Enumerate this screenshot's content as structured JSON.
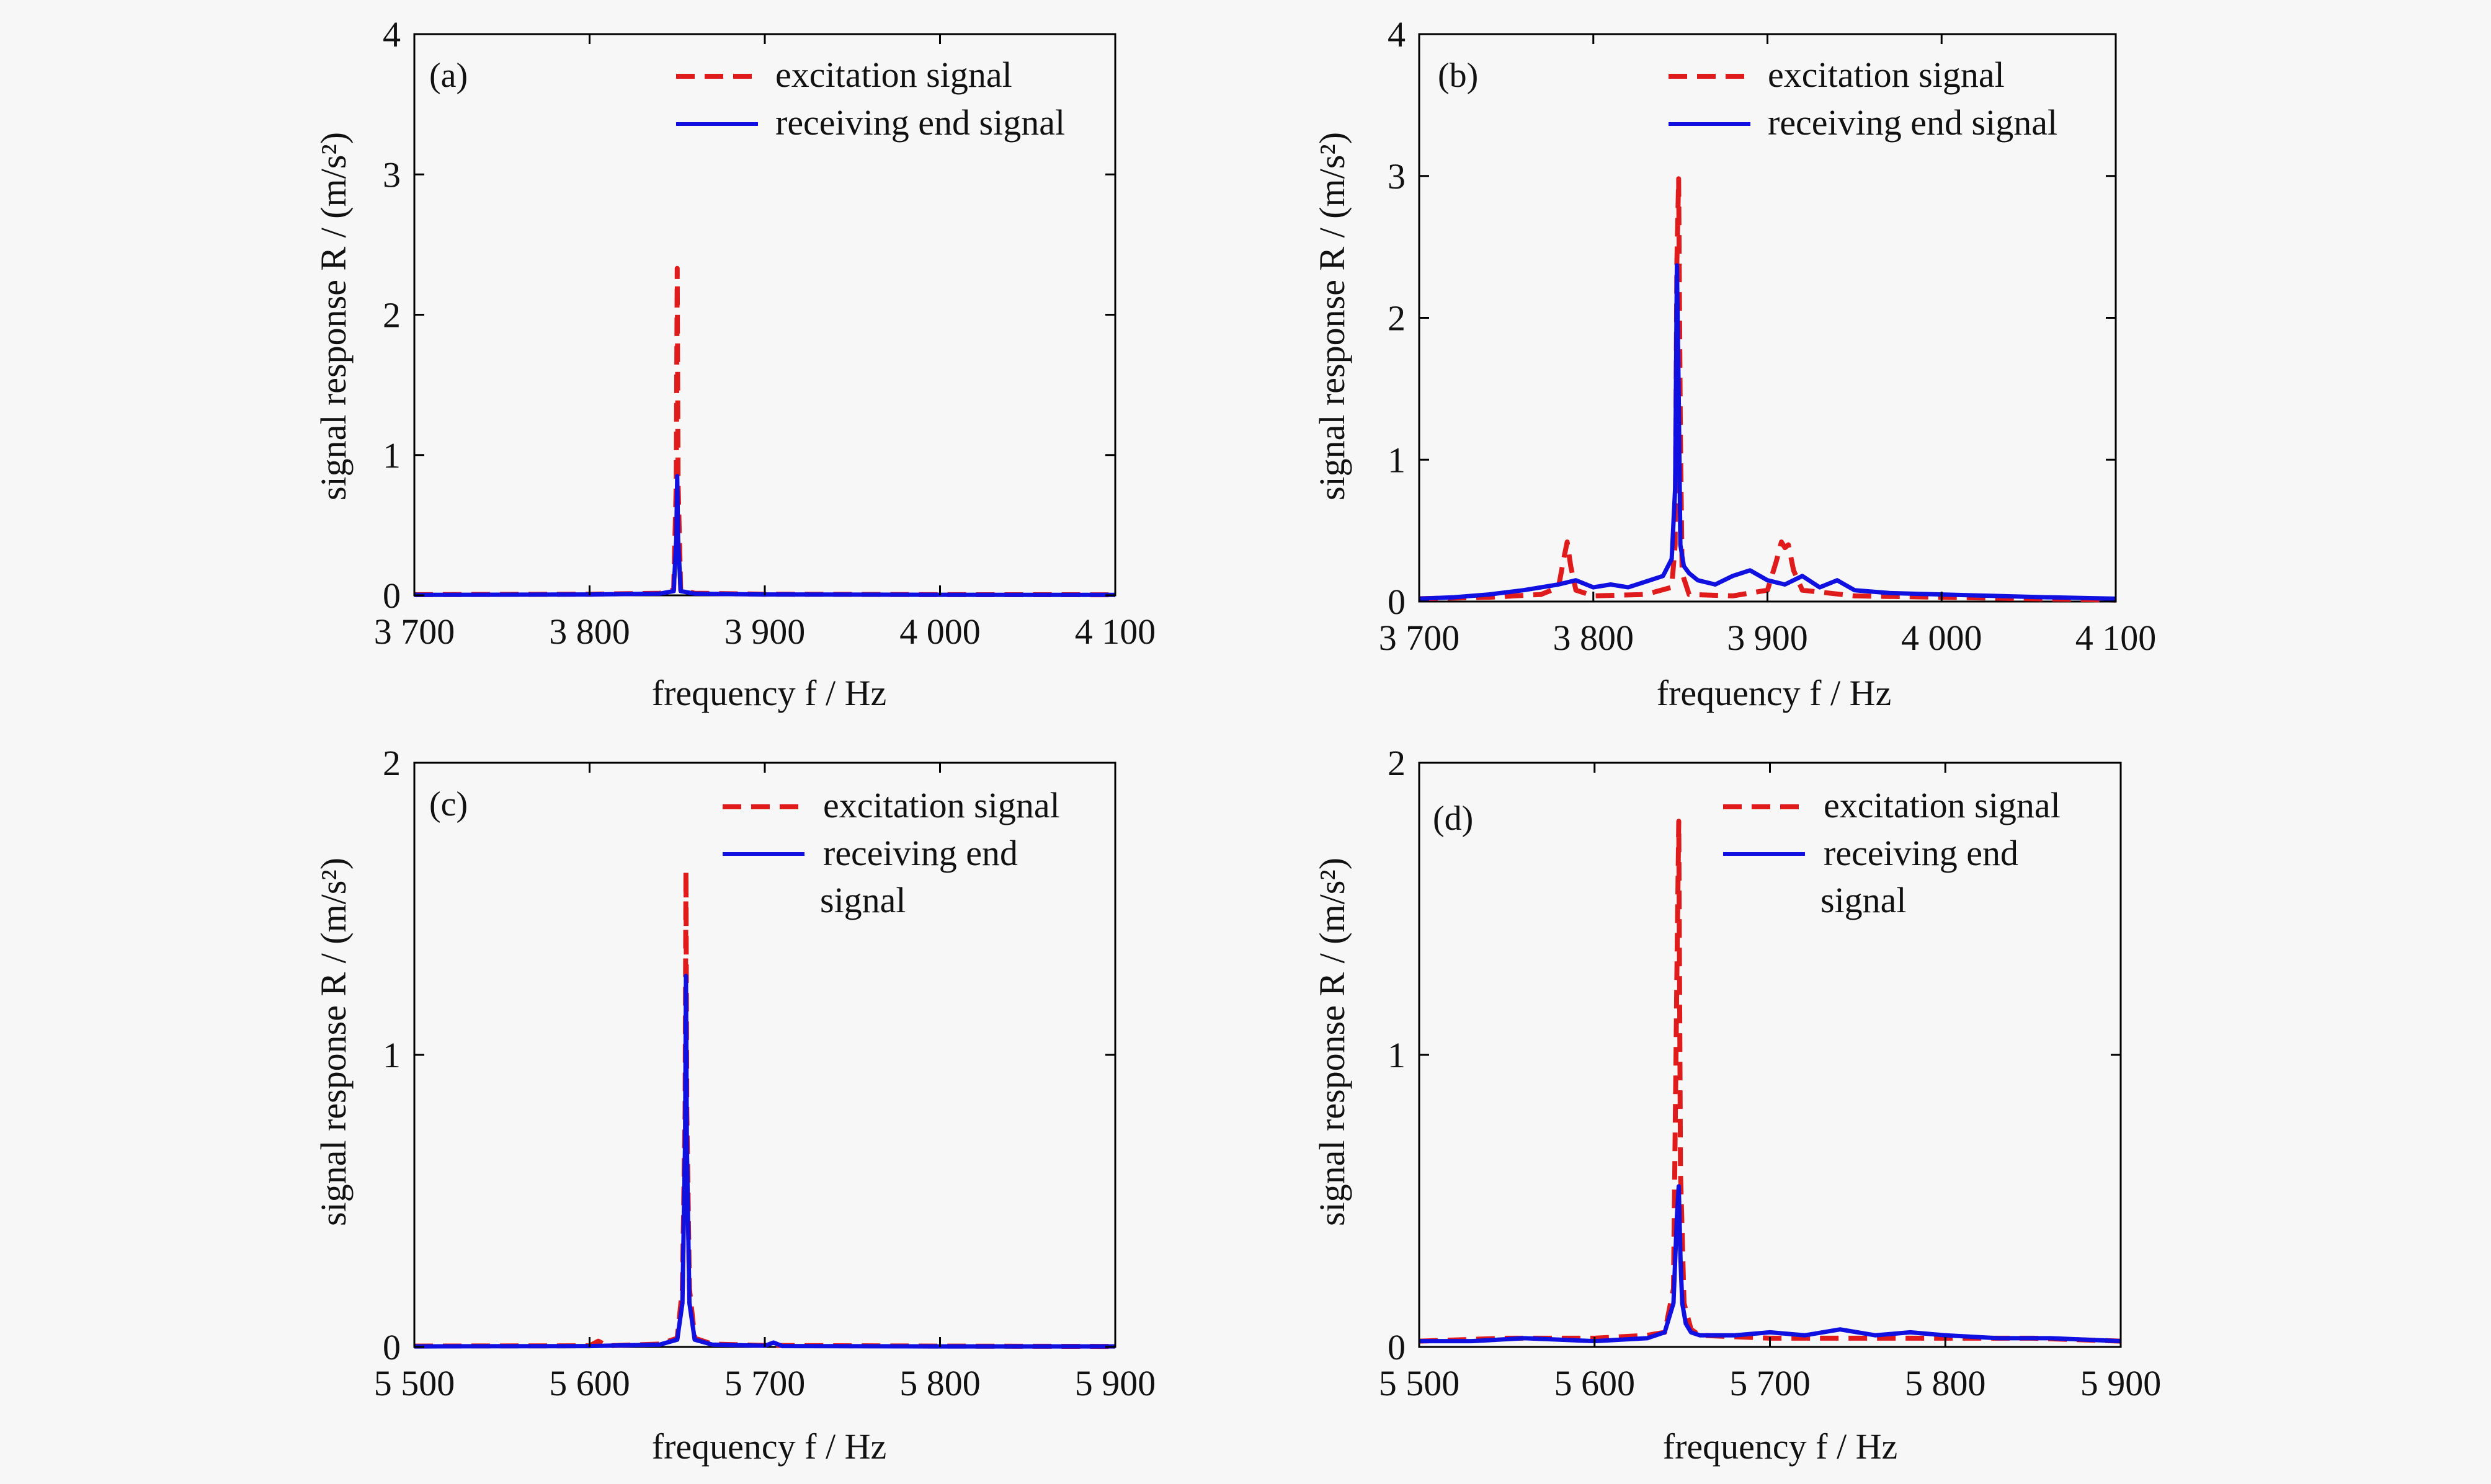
{
  "colors": {
    "background": "#f7f7f7",
    "excitation": "#e01b1b",
    "receiving": "#1010e0",
    "axis": "#000000"
  },
  "chart_data": [
    {
      "type": "line",
      "panel_label": "(a)",
      "xlabel": "frequency f / Hz",
      "ylabel": "signal response R / (m/s²)",
      "xlim": [
        3700,
        4100
      ],
      "ylim": [
        0,
        4
      ],
      "x_ticks": [
        3700,
        3800,
        3900,
        4000,
        4100
      ],
      "x_tick_labels": [
        "3 700",
        "3 800",
        "3 900",
        "4 000",
        "4 100"
      ],
      "y_ticks": [
        0,
        1,
        2,
        3,
        4
      ],
      "y_tick_labels": [
        "0",
        "1",
        "2",
        "3",
        "4"
      ],
      "legend": [
        "excitation signal",
        "receiving end signal"
      ],
      "legend_position": "top-right",
      "grid": false,
      "series": [
        {
          "name": "excitation signal",
          "style": "dashed",
          "x": [
            3700,
            3800,
            3840,
            3848,
            3849.5,
            3850,
            3850.5,
            3852,
            3860,
            3900,
            4000,
            4100
          ],
          "y": [
            0.005,
            0.008,
            0.015,
            0.04,
            0.8,
            2.33,
            0.8,
            0.04,
            0.015,
            0.008,
            0.005,
            0.004
          ]
        },
        {
          "name": "receiving end signal",
          "style": "solid",
          "x": [
            3700,
            3800,
            3840,
            3848,
            3849.5,
            3850,
            3850.5,
            3852,
            3860,
            3900,
            4000,
            4100
          ],
          "y": [
            0.003,
            0.006,
            0.012,
            0.03,
            0.4,
            0.85,
            0.4,
            0.03,
            0.012,
            0.006,
            0.004,
            0.003
          ]
        }
      ]
    },
    {
      "type": "line",
      "panel_label": "(b)",
      "xlabel": "frequency f / Hz",
      "ylabel": "signal response R / (m/s²)",
      "xlim": [
        3700,
        4100
      ],
      "ylim": [
        0,
        4
      ],
      "x_ticks": [
        3700,
        3800,
        3900,
        4000,
        4100
      ],
      "x_tick_labels": [
        "3 700",
        "3 800",
        "3 900",
        "4 000",
        "4 100"
      ],
      "y_ticks": [
        0,
        1,
        2,
        3,
        4
      ],
      "y_tick_labels": [
        "0",
        "1",
        "2",
        "3",
        "4"
      ],
      "legend": [
        "excitation signal",
        "receiving end signal"
      ],
      "legend_position": "top-right",
      "grid": false,
      "series": [
        {
          "name": "excitation signal",
          "style": "dashed",
          "x": [
            3700,
            3740,
            3770,
            3780,
            3783,
            3785,
            3787,
            3790,
            3800,
            3830,
            3845,
            3847,
            3848,
            3849,
            3850,
            3851,
            3855,
            3880,
            3900,
            3905,
            3908,
            3910,
            3912,
            3915,
            3920,
            3950,
            4000,
            4050,
            4100
          ],
          "y": [
            0.02,
            0.03,
            0.05,
            0.1,
            0.3,
            0.42,
            0.25,
            0.08,
            0.04,
            0.05,
            0.1,
            0.4,
            2.4,
            2.98,
            1.2,
            0.2,
            0.05,
            0.04,
            0.08,
            0.28,
            0.42,
            0.38,
            0.4,
            0.22,
            0.08,
            0.04,
            0.03,
            0.02,
            0.01
          ]
        },
        {
          "name": "receiving end signal",
          "style": "solid",
          "x": [
            3700,
            3720,
            3740,
            3760,
            3780,
            3790,
            3800,
            3810,
            3820,
            3830,
            3840,
            3845,
            3847,
            3848,
            3849,
            3850,
            3852,
            3855,
            3860,
            3870,
            3880,
            3890,
            3900,
            3910,
            3920,
            3930,
            3940,
            3950,
            3970,
            4000,
            4030,
            4060,
            4100
          ],
          "y": [
            0.02,
            0.03,
            0.05,
            0.08,
            0.12,
            0.15,
            0.1,
            0.12,
            0.1,
            0.14,
            0.18,
            0.3,
            0.8,
            2.37,
            1.5,
            0.4,
            0.25,
            0.2,
            0.15,
            0.12,
            0.18,
            0.22,
            0.15,
            0.12,
            0.18,
            0.1,
            0.15,
            0.08,
            0.06,
            0.05,
            0.04,
            0.03,
            0.02
          ]
        }
      ]
    },
    {
      "type": "line",
      "panel_label": "(c)",
      "xlabel": "frequency f / Hz",
      "ylabel": "signal response R / (m/s²)",
      "xlim": [
        5500,
        5900
      ],
      "ylim": [
        0,
        2
      ],
      "x_ticks": [
        5500,
        5600,
        5700,
        5800,
        5900
      ],
      "x_tick_labels": [
        "5 500",
        "5 600",
        "5 700",
        "5 800",
        "5 900"
      ],
      "y_ticks": [
        0,
        1,
        2
      ],
      "y_tick_labels": [
        "0",
        "1",
        "2"
      ],
      "legend": [
        "excitation signal",
        "receiving end\nsignal"
      ],
      "legend_position": "top-right",
      "grid": false,
      "series": [
        {
          "name": "excitation signal",
          "style": "dashed",
          "x": [
            5500,
            5600,
            5605,
            5610,
            5640,
            5650,
            5653,
            5654.5,
            5655,
            5655.5,
            5657,
            5660,
            5670,
            5700,
            5800,
            5900
          ],
          "y": [
            0.003,
            0.004,
            0.02,
            0.004,
            0.01,
            0.03,
            0.2,
            0.8,
            1.63,
            0.8,
            0.2,
            0.03,
            0.01,
            0.005,
            0.003,
            0.002
          ]
        },
        {
          "name": "receiving end\nsignal",
          "style": "solid",
          "x": [
            5500,
            5600,
            5640,
            5650,
            5653,
            5654.5,
            5655,
            5655.5,
            5657,
            5660,
            5670,
            5700,
            5705,
            5710,
            5800,
            5900
          ],
          "y": [
            0.002,
            0.003,
            0.008,
            0.025,
            0.15,
            0.7,
            1.27,
            0.7,
            0.15,
            0.025,
            0.008,
            0.004,
            0.015,
            0.003,
            0.002,
            0.002
          ]
        }
      ]
    },
    {
      "type": "line",
      "panel_label": "(d)",
      "xlabel": "frequency f / Hz",
      "ylabel": "signal response R / (m/s²)",
      "xlim": [
        5500,
        5900
      ],
      "ylim": [
        0,
        2
      ],
      "x_ticks": [
        5500,
        5600,
        5700,
        5800,
        5900
      ],
      "x_tick_labels": [
        "5 500",
        "5 600",
        "5 700",
        "5 800",
        "5 900"
      ],
      "y_ticks": [
        0,
        1,
        2
      ],
      "y_tick_labels": [
        "0",
        "1",
        "2"
      ],
      "legend": [
        "excitation signal",
        "receiving end\nsignal"
      ],
      "legend_position": "top-right",
      "grid": false,
      "series": [
        {
          "name": "excitation signal",
          "style": "dashed",
          "x": [
            5500,
            5550,
            5600,
            5630,
            5640,
            5645,
            5647,
            5648,
            5649,
            5651,
            5655,
            5660,
            5700,
            5750,
            5800,
            5850,
            5900
          ],
          "y": [
            0.02,
            0.03,
            0.03,
            0.04,
            0.05,
            0.2,
            1.3,
            1.8,
            0.6,
            0.15,
            0.06,
            0.04,
            0.03,
            0.03,
            0.03,
            0.03,
            0.02
          ]
        },
        {
          "name": "receiving end\nsignal",
          "style": "solid",
          "x": [
            5500,
            5530,
            5560,
            5600,
            5630,
            5640,
            5645,
            5647,
            5648,
            5649,
            5650,
            5652,
            5655,
            5660,
            5680,
            5700,
            5720,
            5740,
            5760,
            5780,
            5800,
            5830,
            5860,
            5900
          ],
          "y": [
            0.02,
            0.02,
            0.03,
            0.02,
            0.03,
            0.05,
            0.15,
            0.45,
            0.55,
            0.3,
            0.15,
            0.08,
            0.05,
            0.04,
            0.04,
            0.05,
            0.04,
            0.06,
            0.04,
            0.05,
            0.04,
            0.03,
            0.03,
            0.02
          ]
        }
      ]
    }
  ]
}
